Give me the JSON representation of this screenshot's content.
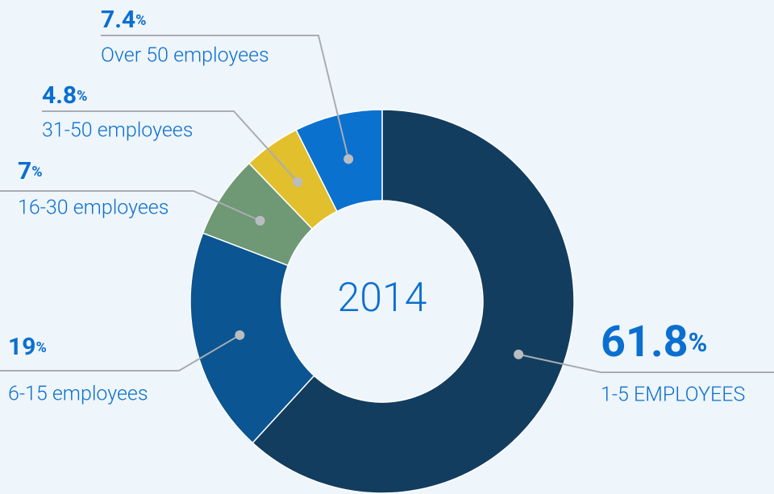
{
  "chart_data": {
    "type": "donut",
    "center_label": "2014",
    "categories": [
      "1-5 EMPLOYEES",
      "6-15 employees",
      "16-30 employees",
      "31-50 employees",
      "Over 50 employees"
    ],
    "values": [
      61.8,
      19,
      7,
      4.8,
      7.4
    ],
    "value_labels": [
      "61.8%",
      "19%",
      "7%",
      "4.8%",
      "7.4%"
    ],
    "colors": [
      "#133d5f",
      "#0b5592",
      "#6f9875",
      "#e2bf2c",
      "#0a71cf"
    ]
  }
}
